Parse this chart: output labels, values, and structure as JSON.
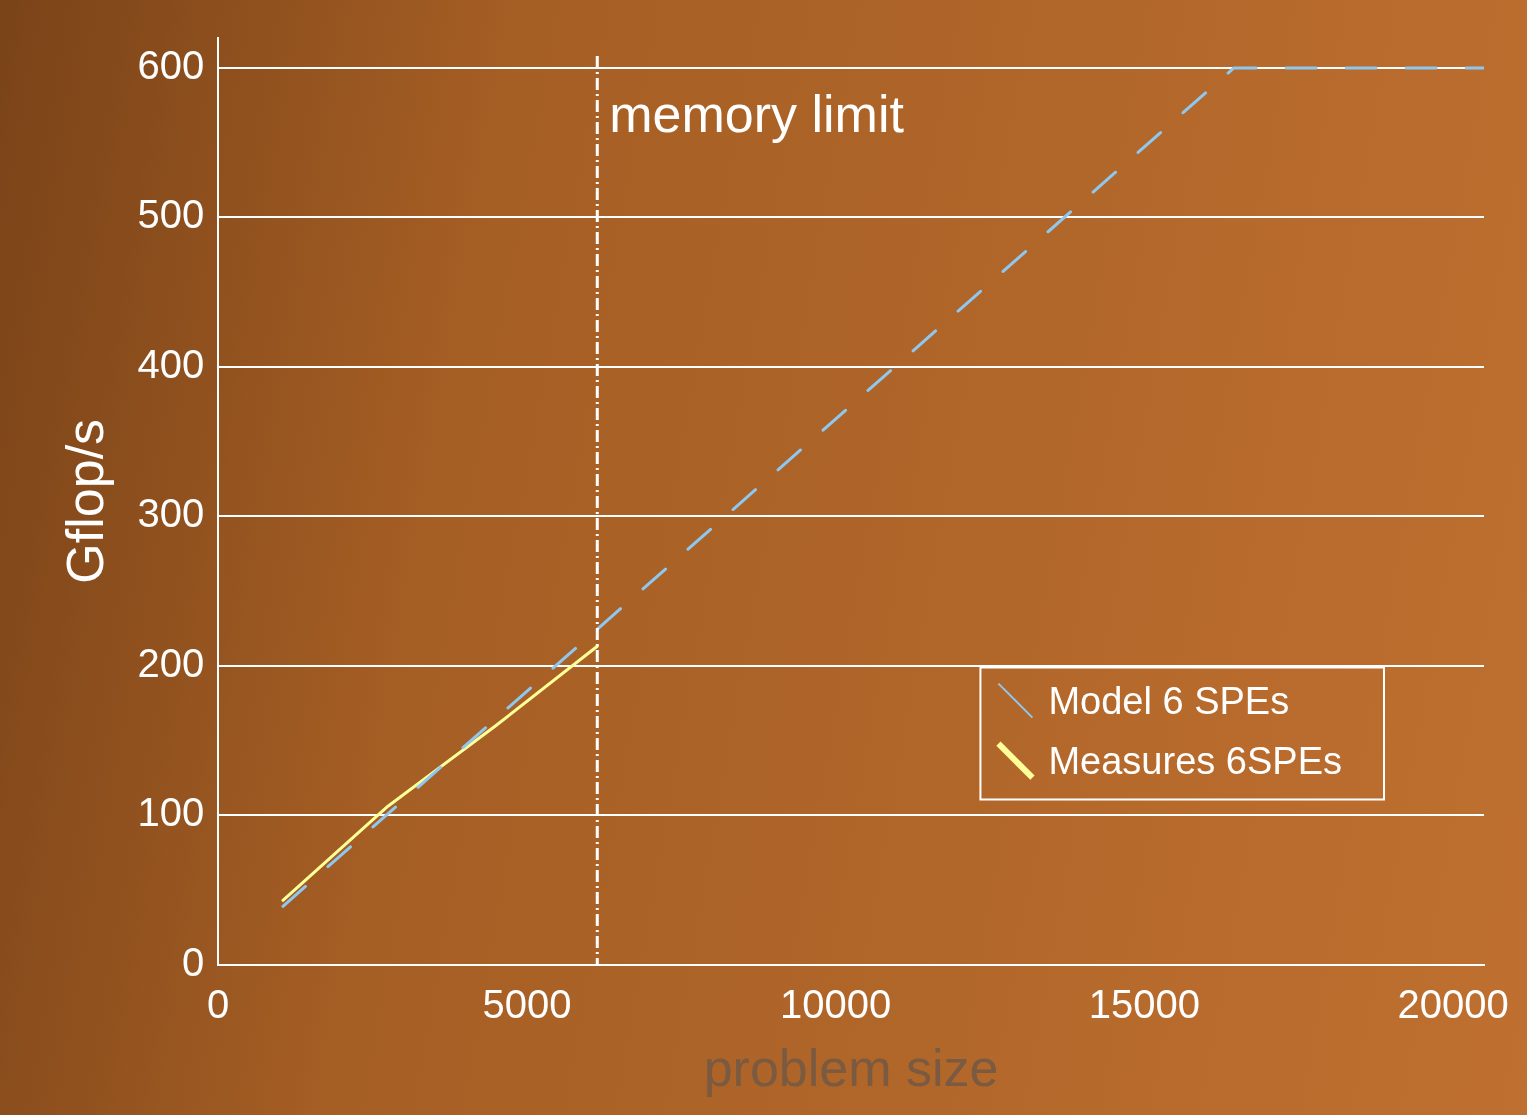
{
  "chart_data": {
    "type": "line",
    "xlabel": "problem size",
    "ylabel": "Gflop/s",
    "xlim": [
      0,
      20500
    ],
    "xticks": [
      0,
      5000,
      10000,
      15000,
      20000
    ],
    "ylim": [
      0,
      620
    ],
    "yticks": [
      0,
      100,
      200,
      300,
      400,
      500,
      600
    ],
    "grid": "y",
    "legend": "bottom right",
    "marker": "none",
    "series": [
      {
        "name": "Model 6 SPEs",
        "color": "#8ec8f0",
        "line_style": "dashed",
        "x": [
          1050,
          16450,
          20500
        ],
        "values": [
          39,
          600,
          600
        ]
      },
      {
        "name": "Measures 6SPEs",
        "color": "#ffff99",
        "line_style": "solid",
        "x": [
          1050,
          2750,
          4500,
          6140
        ],
        "values": [
          43,
          106,
          160,
          213
        ]
      }
    ],
    "ref_lines": [
      {
        "axis": "x",
        "value": 6140,
        "label": "memory limit",
        "color": "#ffffff",
        "line_style": "dashdot"
      }
    ]
  }
}
